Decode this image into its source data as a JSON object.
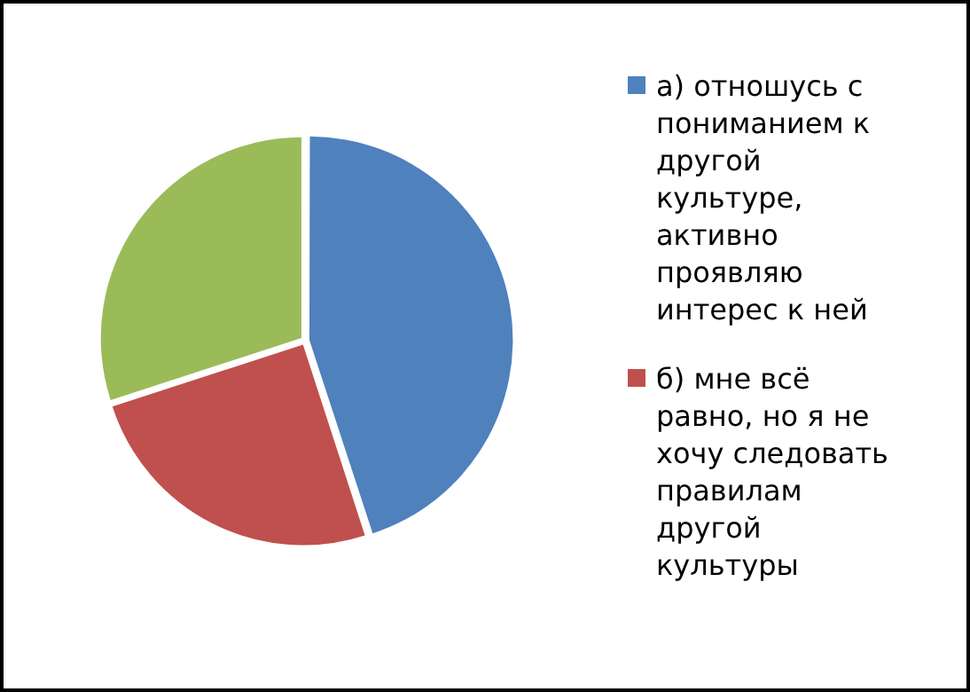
{
  "chart_data": {
    "type": "pie",
    "categories": [
      "а) отношусь с пониманием к другой культуре, активно проявляю интерес к ней",
      "б) мне всё равно, но я не хочу следовать правилам другой культуры",
      null
    ],
    "values": [
      45,
      25,
      30
    ],
    "colors": [
      "#4f81bd",
      "#c0504d",
      "#9bbb59"
    ],
    "legend": "right"
  }
}
